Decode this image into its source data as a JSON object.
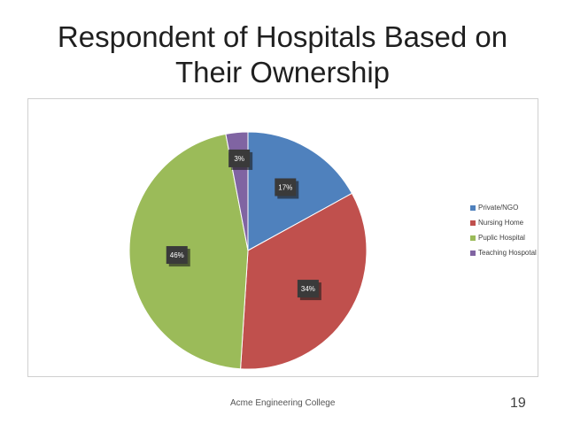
{
  "slide": {
    "title": "Respondent of Hospitals Based on Their Ownership",
    "footer": "Acme Engineering College",
    "page_number": "19"
  },
  "chart_data": {
    "type": "pie",
    "title": "",
    "categories": [
      "Private/NGO",
      "Nursing Home",
      "Puplic Hospital",
      "Teaching Hospotal"
    ],
    "values": [
      17,
      34,
      46,
      3
    ],
    "labels": [
      "17%",
      "34%",
      "46%",
      "3%"
    ],
    "colors": [
      "#4f81bd",
      "#c0504d",
      "#9bbb59",
      "#8064a2"
    ],
    "legend_position": "right"
  }
}
